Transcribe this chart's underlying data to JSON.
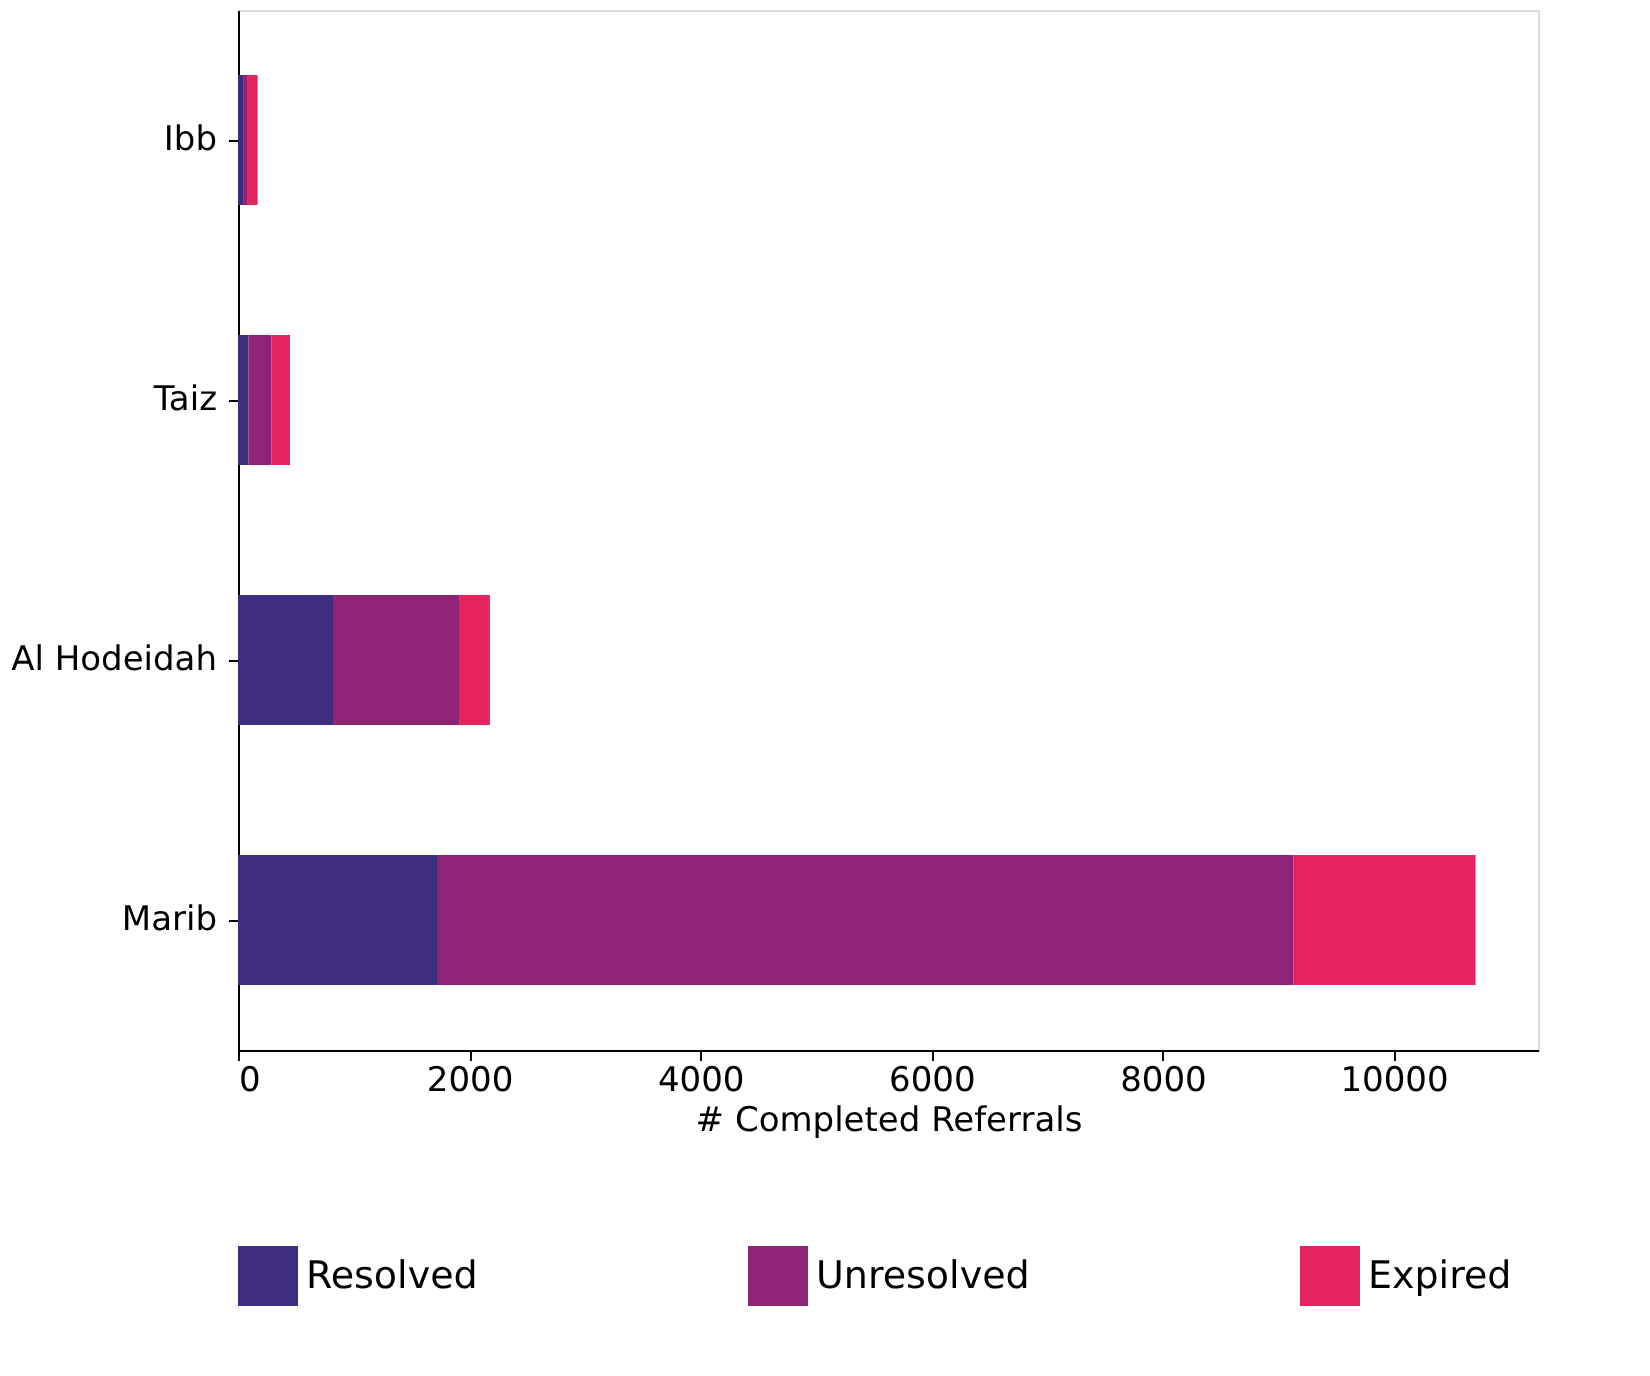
{
  "chart_data": {
    "type": "bar",
    "orientation": "horizontal",
    "stacked": true,
    "xlabel": "# Completed Referrals",
    "categories": [
      "Ibb",
      "Taiz",
      "Al Hodeidah",
      "Marib"
    ],
    "series": [
      {
        "name": "Resolved",
        "color": "#3f2d7f",
        "values": [
          50,
          90,
          830,
          1730
        ]
      },
      {
        "name": "Unresolved",
        "color": "#8f2376",
        "values": [
          35,
          200,
          1090,
          7405
        ]
      },
      {
        "name": "Expired",
        "color": "#e4245e",
        "values": [
          85,
          160,
          260,
          1575
        ]
      }
    ],
    "xlim": [
      0,
      11250
    ],
    "xticks": [
      0,
      2000,
      4000,
      6000,
      8000,
      10000
    ],
    "grid": false,
    "legend": "bottom"
  }
}
